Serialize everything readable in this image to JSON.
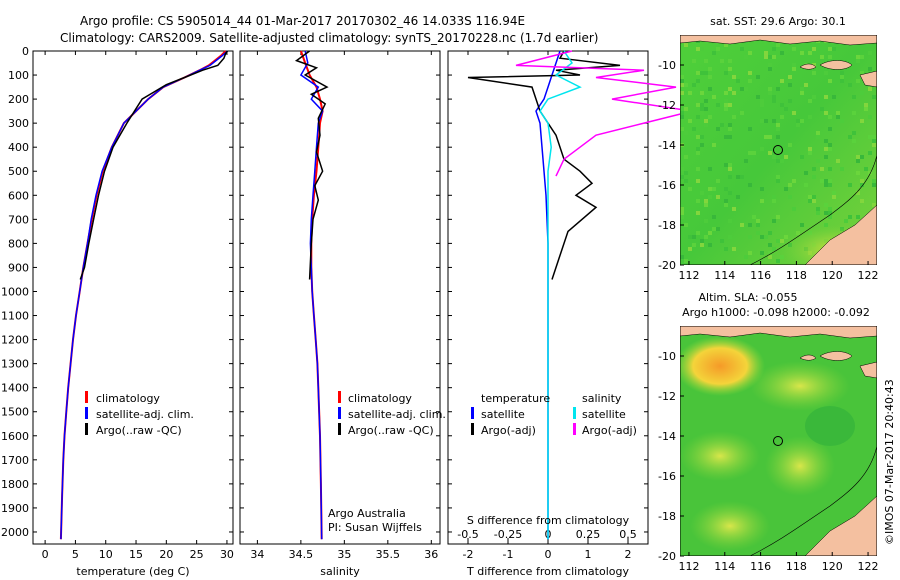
{
  "header": {
    "line1": "Argo profile: CS 5905014_44 01-Mar-2017 20170302_46 14.033S 116.94E",
    "line2": "Climatology: CARS2009. Satellite-adjusted climatology: synTS_20170228.nc (1.7d earlier)"
  },
  "colors": {
    "climatology": "#ff0000",
    "satellite": "#0000ff",
    "argo": "#000000",
    "sal_satellite": "#00e5ee",
    "sal_argo": "#ff00ff"
  },
  "chart_data": [
    {
      "type": "line",
      "xlabel": "temperature (deg C)",
      "ylabel": "",
      "xlim": [
        -2,
        31
      ],
      "ylim": [
        2050,
        0
      ],
      "xticks": [
        "0",
        "5",
        "10",
        "15",
        "20",
        "25",
        "30"
      ],
      "yticks": [
        "0",
        "100",
        "200",
        "300",
        "400",
        "500",
        "600",
        "700",
        "800",
        "900",
        "1000",
        "1100",
        "1200",
        "1300",
        "1400",
        "1500",
        "1600",
        "1700",
        "1800",
        "1900",
        "2000"
      ],
      "legend": [
        "climatology",
        "satellite-adj. clim.",
        "Argo(..raw -QC)"
      ],
      "series": [
        {
          "name": "climatology",
          "x": [
            29.8,
            29,
            28,
            27,
            25.5,
            23,
            19.5,
            17,
            13,
            11,
            9.5,
            8.5,
            7.7,
            7,
            6.3,
            5.7,
            5.1,
            4.6,
            4.2,
            3.8,
            3.5,
            3.2,
            3.0,
            2.8,
            2.6
          ],
          "y": [
            0,
            20,
            40,
            60,
            80,
            110,
            150,
            200,
            300,
            400,
            500,
            600,
            700,
            800,
            900,
            1000,
            1100,
            1200,
            1300,
            1400,
            1500,
            1600,
            1700,
            1850,
            2030
          ]
        },
        {
          "name": "satellite-adj. clim.",
          "x": [
            30.1,
            29.2,
            28.2,
            27.2,
            25.5,
            23,
            19.5,
            17,
            13,
            11,
            9.4,
            8.4,
            7.6,
            7,
            6.3,
            5.7,
            5.1,
            4.6,
            4.2,
            3.8,
            3.5,
            3.2,
            3.0,
            2.8,
            2.6
          ],
          "y": [
            0,
            20,
            40,
            60,
            80,
            110,
            150,
            200,
            300,
            400,
            500,
            600,
            700,
            800,
            900,
            1000,
            1100,
            1200,
            1300,
            1400,
            1500,
            1600,
            1700,
            1850,
            2030
          ]
        },
        {
          "name": "Argo(..raw -QC)",
          "x": [
            30.1,
            29.8,
            29.5,
            28.5,
            26,
            23,
            20,
            18,
            16,
            13.5,
            11.2,
            9.8,
            8.8,
            8.0,
            7.2,
            6.5,
            5.8
          ],
          "y": [
            0,
            10,
            30,
            60,
            80,
            110,
            140,
            170,
            200,
            300,
            400,
            500,
            600,
            700,
            800,
            900,
            950
          ]
        }
      ]
    },
    {
      "type": "line",
      "xlabel": "salinity",
      "ylabel": "",
      "xlim": [
        33.8,
        36.1
      ],
      "ylim": [
        2050,
        0
      ],
      "xticks": [
        "34",
        "34.5",
        "35",
        "35.5",
        "36"
      ],
      "legend": [
        "climatology",
        "satellite-adj. clim.",
        "Argo(..raw -QC)"
      ],
      "annotation": [
        "Argo Australia",
        "PI: Susan Wijffels"
      ],
      "series": [
        {
          "name": "climatology",
          "x": [
            34.5,
            34.55,
            34.6,
            34.68,
            34.72,
            34.75,
            34.72,
            34.7,
            34.68,
            34.65,
            34.63,
            34.62,
            34.62,
            34.63,
            34.65,
            34.67,
            34.69,
            34.7,
            34.72,
            34.73,
            34.74
          ],
          "y": [
            0,
            50,
            100,
            150,
            200,
            250,
            300,
            400,
            500,
            600,
            700,
            800,
            900,
            1000,
            1100,
            1200,
            1300,
            1400,
            1600,
            1800,
            2030
          ]
        },
        {
          "name": "satellite-adj. clim.",
          "x": [
            34.55,
            34.58,
            34.5,
            34.7,
            34.62,
            34.75,
            34.7,
            34.68,
            34.66,
            34.64,
            34.62,
            34.61,
            34.62,
            34.63,
            34.65,
            34.67,
            34.69,
            34.7,
            34.72,
            34.73,
            34.74
          ],
          "y": [
            0,
            50,
            100,
            150,
            200,
            250,
            300,
            400,
            500,
            600,
            700,
            800,
            900,
            1000,
            1100,
            1200,
            1300,
            1400,
            1600,
            1800,
            2030
          ]
        },
        {
          "name": "Argo(..raw -QC)",
          "x": [
            34.6,
            34.45,
            34.68,
            34.55,
            34.8,
            34.62,
            34.78,
            34.7,
            34.72,
            34.68,
            34.75,
            34.66,
            34.7,
            34.64,
            34.62,
            34.6
          ],
          "y": [
            0,
            40,
            70,
            100,
            150,
            180,
            220,
            280,
            350,
            420,
            500,
            560,
            620,
            700,
            800,
            950
          ]
        }
      ]
    },
    {
      "type": "line",
      "xlabel": "T difference from climatology",
      "xlabel_top": "S difference from climatology",
      "xlim": [
        -2.5,
        2.5
      ],
      "ylim": [
        2050,
        0
      ],
      "xticks_bottom": [
        "-2",
        "-1",
        "0",
        "1",
        "2"
      ],
      "xticks_top": [
        "-0.5",
        "-0.25",
        "0",
        "0.25",
        "0.5"
      ],
      "legend": [
        "temperature",
        "satellite",
        "Argo(-adj)",
        "salinity",
        "satellite",
        "Argo(-adj)"
      ],
      "series": [
        {
          "name": "T satellite",
          "x": [
            0.3,
            0.2,
            0.1,
            0.0,
            -0.1,
            -0.3,
            -0.2,
            -0.15,
            -0.1,
            -0.05,
            0.0,
            0.0,
            0.0,
            0.0,
            0.0
          ],
          "y": [
            0,
            50,
            100,
            150,
            200,
            250,
            300,
            400,
            500,
            600,
            800,
            1000,
            1300,
            1700,
            2030
          ]
        },
        {
          "name": "T Argo(-adj)",
          "x": [
            0.4,
            0.3,
            1.8,
            0.2,
            0.8,
            -2.0,
            -0.4,
            -0.2,
            0.2,
            0.4,
            0.8,
            1.1,
            0.7,
            1.2,
            0.5,
            0.3,
            0.1
          ],
          "y": [
            0,
            30,
            60,
            80,
            100,
            110,
            150,
            250,
            350,
            450,
            500,
            550,
            600,
            650,
            750,
            850,
            950
          ]
        },
        {
          "name": "S satellite",
          "x": [
            0.1,
            0.15,
            0.05,
            0.2,
            0.0,
            -0.05,
            0.0,
            0.02,
            0.0,
            0.0,
            0.0,
            0.0,
            0.0
          ],
          "y": [
            0,
            50,
            100,
            150,
            200,
            250,
            300,
            400,
            500,
            700,
            1000,
            1500,
            2030
          ]
        },
        {
          "name": "S Argo(-adj)",
          "x": [
            0.15,
            -0.2,
            0.6,
            0.3,
            0.8,
            0.4,
            0.9,
            0.6,
            0.3,
            0.2,
            0.1,
            0.05
          ],
          "y": [
            0,
            60,
            80,
            110,
            150,
            200,
            250,
            300,
            350,
            400,
            450,
            520
          ]
        }
      ]
    },
    {
      "type": "heatmap",
      "title": "sat. SST: 29.6 Argo: 30.1",
      "xticks": [
        "112",
        "114",
        "116",
        "118",
        "120",
        "122"
      ],
      "yticks": [
        "-10",
        "-12",
        "-14",
        "-16",
        "-18",
        "-20"
      ],
      "xlim": [
        111.5,
        122.5
      ],
      "ylim": [
        -20,
        -8.5
      ],
      "marker": {
        "lon": 116.94,
        "lat": -14.033
      }
    },
    {
      "type": "heatmap",
      "title": "Altim. SLA: -0.055",
      "subtitle": "Argo h1000: -0.098 h2000: -0.092",
      "xticks": [
        "112",
        "114",
        "116",
        "118",
        "120",
        "122"
      ],
      "yticks": [
        "-10",
        "-12",
        "-14",
        "-16",
        "-18",
        "-20"
      ],
      "xlim": [
        111.5,
        122.5
      ],
      "ylim": [
        -20,
        -8.5
      ],
      "marker": {
        "lon": 116.94,
        "lat": -14.033
      }
    }
  ],
  "side_label": "©IMOS 07-Mar-2017 20:40:43"
}
